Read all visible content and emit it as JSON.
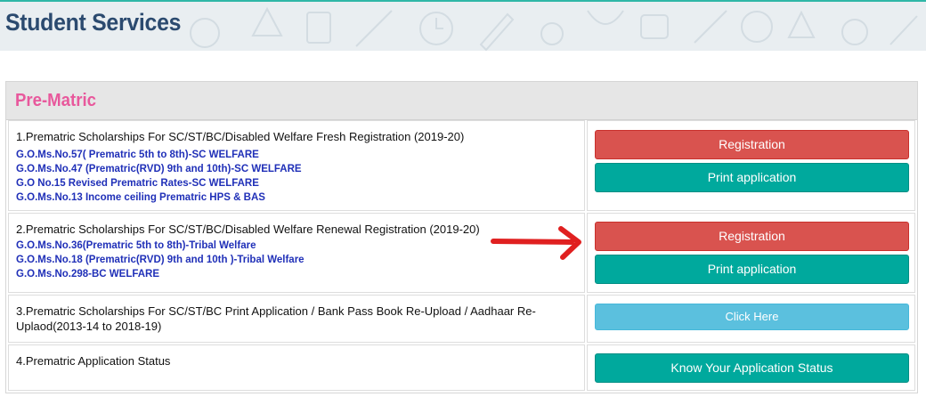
{
  "page": {
    "title": "Student Services"
  },
  "section": {
    "title": "Pre-Matric"
  },
  "rows": [
    {
      "title": "1.Prematric Scholarships For SC/ST/BC/Disabled Welfare Fresh Registration (2019-20)",
      "links": [
        "G.O.Ms.No.57( Prematric 5th to 8th)-SC WELFARE",
        "G.O.Ms.No.47 (Prematric(RVD) 9th and 10th)-SC WELFARE",
        "G.O No.15 Revised Prematric Rates-SC WELFARE",
        "G.O.Ms.No.13 Income ceiling Prematric HPS & BAS"
      ],
      "buttons": [
        "Registration",
        "Print application"
      ]
    },
    {
      "title": "2.Prematric Scholarships For SC/ST/BC/Disabled Welfare Renewal Registration (2019-20)",
      "links": [
        "G.O.Ms.No.36(Prematric 5th to 8th)-Tribal Welfare",
        "G.O.Ms.No.18 (Prematric(RVD) 9th and 10th )-Tribal Welfare",
        "G.O.Ms.No.298-BC WELFARE"
      ],
      "buttons": [
        "Registration",
        "Print application"
      ]
    },
    {
      "title": "3.Prematric Scholarships For SC/ST/BC Print Application / Bank Pass Book Re-Upload / Aadhaar Re-Uplaod(2013-14 to 2018-19)",
      "buttons": [
        "Click Here"
      ]
    },
    {
      "title": "4.Prematric Application Status",
      "buttons": [
        "Know Your Application Status"
      ]
    }
  ],
  "colors": {
    "accent_red": "#d9534f",
    "accent_teal": "#00a99d",
    "accent_sky": "#5bc0de",
    "title_pink": "#e8589c",
    "link_blue": "#2030b8",
    "annotation_arrow": "#e02020"
  },
  "icons": [
    "red-arrow-icon"
  ]
}
